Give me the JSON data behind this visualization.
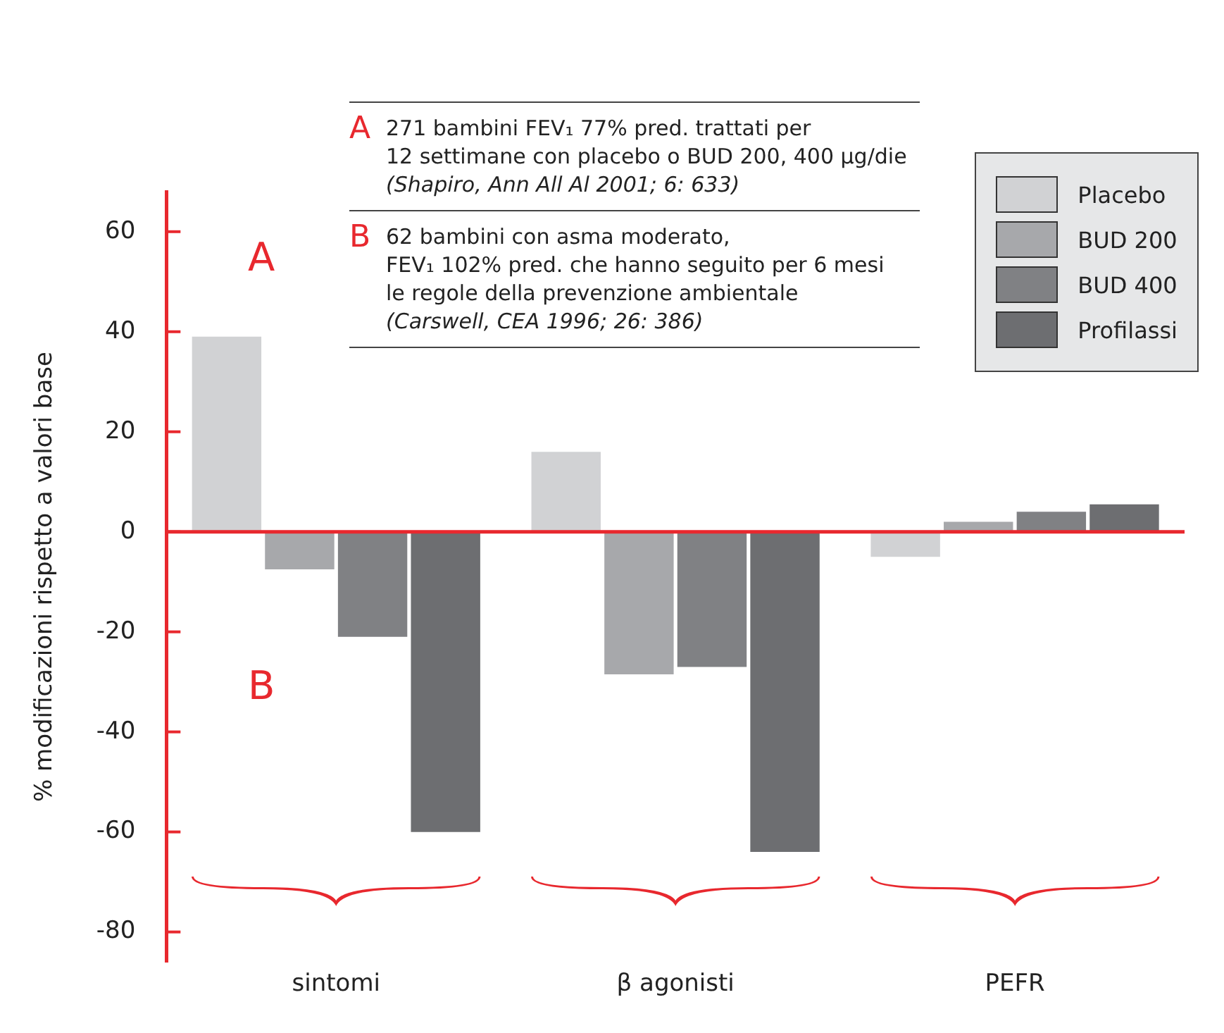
{
  "chart_data": {
    "type": "bar",
    "ylabel": "% modificazioni rispetto a valori base",
    "categories": [
      "sintomi",
      "β agonisti",
      "PEFR"
    ],
    "series": [
      {
        "name": "Placebo",
        "color": "#d1d2d4",
        "values": [
          39,
          16,
          -5
        ]
      },
      {
        "name": "BUD 200",
        "color": "#a7a8ab",
        "values": [
          -7.5,
          -28.5,
          2
        ]
      },
      {
        "name": "BUD 400",
        "color": "#808184",
        "values": [
          -21,
          -27,
          4
        ]
      },
      {
        "name": "Profilassi",
        "color": "#6d6e71",
        "values": [
          -60,
          -64,
          5.5
        ]
      }
    ],
    "ref_lines": [
      {
        "axis": "y",
        "value": 0,
        "color": "#e8282e"
      }
    ],
    "ylim": [
      -86,
      68
    ],
    "yticks": [
      -80,
      -60,
      -40,
      -20,
      0,
      20,
      40,
      60
    ],
    "grid": false,
    "legend": "top right",
    "annotations": [
      "A",
      "B",
      "A 271 bambini FEV₁ 77% pred. trattati per\n12 settimane con placebo o BUD 200, 400 µg/die\n(Shapiro, Ann All Al 2001; 6: 633)",
      "B 62 bambini con asma moderato,\nFEV₁ 102% pred. che hanno seguito per 6 mesi\nle regole della prevenzione ambientale\n(Carswell, CEA 1996; 26: 386)"
    ]
  }
}
